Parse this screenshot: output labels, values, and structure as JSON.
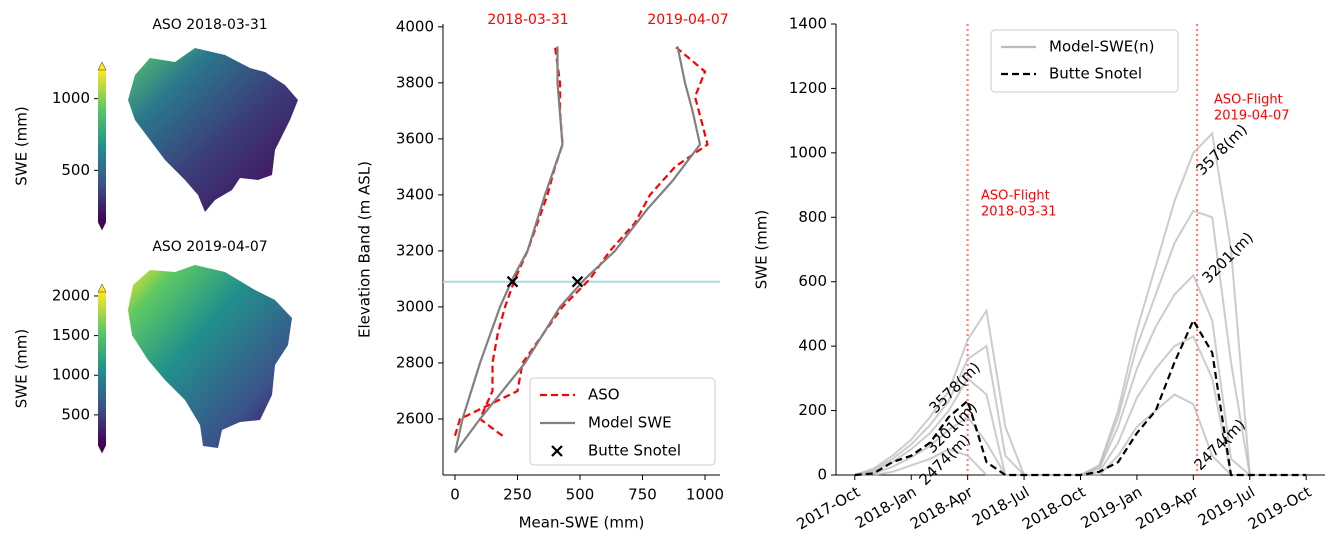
{
  "chart_data": [
    {
      "type": "map",
      "title": "ASO 2018-03-31",
      "colorbar": {
        "label": "SWE (mm)",
        "lim": [
          140,
          1200
        ],
        "ticks": [
          500,
          1000
        ]
      }
    },
    {
      "type": "map",
      "title": "ASO 2019-04-07",
      "colorbar": {
        "label": "SWE (mm)",
        "lim": [
          120,
          2050
        ],
        "ticks": [
          500,
          1000,
          1500,
          2000
        ]
      }
    },
    {
      "type": "profile",
      "xlabel": "Mean-SWE (mm)",
      "ylabel": "Elevation Band (m ASL)",
      "xlim": [
        -48,
        1060
      ],
      "ylim": [
        2400,
        4010
      ],
      "xticks": [
        0,
        250,
        500,
        750,
        1000
      ],
      "yticks": [
        2600,
        2800,
        3000,
        3200,
        3400,
        3600,
        3800,
        4000
      ],
      "hline": 3090,
      "hline_color": "#add8e6",
      "annotations": [
        "2018-03-31",
        "2019-04-07"
      ],
      "annotation_color": "#ff0000",
      "legend": "lower right",
      "series": [
        {
          "name": "ASO",
          "color": "#ff0000",
          "dash": true,
          "x": [
            190,
            100,
            150,
            150,
            170,
            200,
            240,
            290,
            330,
            370,
            400,
            430,
            420,
            420,
            400,
            null,
            0,
            20,
            250,
            270,
            350,
            430,
            540,
            620,
            720,
            780,
            880,
            1010,
            990,
            960,
            1000,
            880
          ],
          "y": [
            2540,
            2600,
            2700,
            2800,
            2900,
            3000,
            3100,
            3200,
            3300,
            3400,
            3500,
            3580,
            3700,
            3800,
            3930,
            null,
            2540,
            2600,
            2700,
            2800,
            2900,
            3000,
            3100,
            3200,
            3300,
            3400,
            3500,
            3580,
            3650,
            3750,
            3840,
            3930
          ]
        },
        {
          "name": "Model SWE",
          "color": "#808080",
          "x": [
            0,
            30,
            100,
            180,
            230,
            290,
            360,
            430,
            410,
            410,
            null,
            0,
            100,
            280,
            420,
            520,
            640,
            770,
            870,
            980,
            950,
            920,
            890
          ],
          "y": [
            2480,
            2600,
            2800,
            3000,
            3100,
            3200,
            3400,
            3580,
            3800,
            3930,
            null,
            2480,
            2600,
            2800,
            3000,
            3100,
            3200,
            3350,
            3450,
            3580,
            3700,
            3800,
            3930
          ]
        },
        {
          "name": "Butte Snotel",
          "color": "#000000",
          "marker": "x",
          "x": [
            230,
            490
          ],
          "y": [
            3090,
            3090
          ]
        }
      ]
    },
    {
      "type": "line",
      "ylabel": "SWE (mm)",
      "x": [
        "2017-10",
        "2017-11",
        "2017-12",
        "2018-01",
        "2018-02",
        "2018-03",
        "2018-04",
        "2018-05",
        "2018-06",
        "2018-07",
        "2018-08",
        "2018-09",
        "2018-10",
        "2018-11",
        "2018-12",
        "2019-01",
        "2019-02",
        "2019-03",
        "2019-04",
        "2019-05",
        "2019-06",
        "2019-07",
        "2019-08",
        "2019-09",
        "2019-10"
      ],
      "xlim": [
        "2017-09",
        "2019-11"
      ],
      "ylim": [
        0,
        1400
      ],
      "xticks": [
        {
          "value": "2017-10",
          "label": "2017-Oct"
        },
        {
          "value": "2018-01",
          "label": "2018-Jan"
        },
        {
          "value": "2018-04",
          "label": "2018-Apr"
        },
        {
          "value": "2018-07",
          "label": "2018-Jul"
        },
        {
          "value": "2018-10",
          "label": "2018-Oct"
        },
        {
          "value": "2019-01",
          "label": "2019-Jan"
        },
        {
          "value": "2019-04",
          "label": "2019-Apr"
        },
        {
          "value": "2019-07",
          "label": "2019-Jul"
        },
        {
          "value": "2019-10",
          "label": "2019-Oct"
        }
      ],
      "yticks": [
        0,
        200,
        400,
        600,
        800,
        1000,
        1200,
        1400
      ],
      "vline_color": "#ff0000",
      "vlines": [
        {
          "x": "2018-03-31",
          "label": [
            "ASO-Flight",
            "2018-03-31"
          ]
        },
        {
          "x": "2019-04-07",
          "label": [
            "ASO-Flight",
            "2019-04-07"
          ]
        }
      ],
      "legend": "upper center",
      "series": [
        {
          "name": "Model-SWE(n)",
          "color": "#bbbbbb",
          "bands": [
            {
              "label": "3578(m)",
              "values": [
                0,
                20,
                60,
                110,
                180,
                260,
                420,
                510,
                150,
                0,
                0,
                0,
                0,
                30,
                200,
                450,
                650,
                850,
                1000,
                1060,
                700,
                0,
                0,
                0,
                0
              ]
            },
            {
              "label": "3201(m)",
              "values": [
                0,
                10,
                40,
                80,
                130,
                200,
                300,
                250,
                0,
                0,
                0,
                0,
                0,
                20,
                150,
                330,
                460,
                560,
                620,
                480,
                50,
                0,
                0,
                0,
                0
              ]
            },
            {
              "label": "2474(m)",
              "values": [
                0,
                0,
                10,
                30,
                50,
                80,
                60,
                0,
                0,
                0,
                0,
                0,
                0,
                0,
                60,
                150,
                200,
                250,
                220,
                60,
                0,
                0,
                0,
                0,
                0
              ]
            },
            {
              "values": [
                0,
                5,
                25,
                55,
                90,
                140,
                180,
                100,
                0,
                0,
                0,
                0,
                0,
                10,
                100,
                240,
                330,
                400,
                430,
                300,
                0,
                0,
                0,
                0,
                0
              ]
            },
            {
              "values": [
                0,
                15,
                50,
                95,
                155,
                230,
                360,
                400,
                60,
                0,
                0,
                0,
                0,
                25,
                180,
                400,
                560,
                720,
                820,
                800,
                350,
                0,
                0,
                0,
                0
              ]
            }
          ]
        },
        {
          "name": "Butte Snotel",
          "color": "#000000",
          "dash": true,
          "values": [
            0,
            5,
            40,
            60,
            100,
            180,
            230,
            40,
            0,
            0,
            0,
            0,
            0,
            10,
            40,
            130,
            200,
            350,
            480,
            380,
            0,
            0,
            0,
            0,
            0
          ]
        }
      ]
    }
  ]
}
